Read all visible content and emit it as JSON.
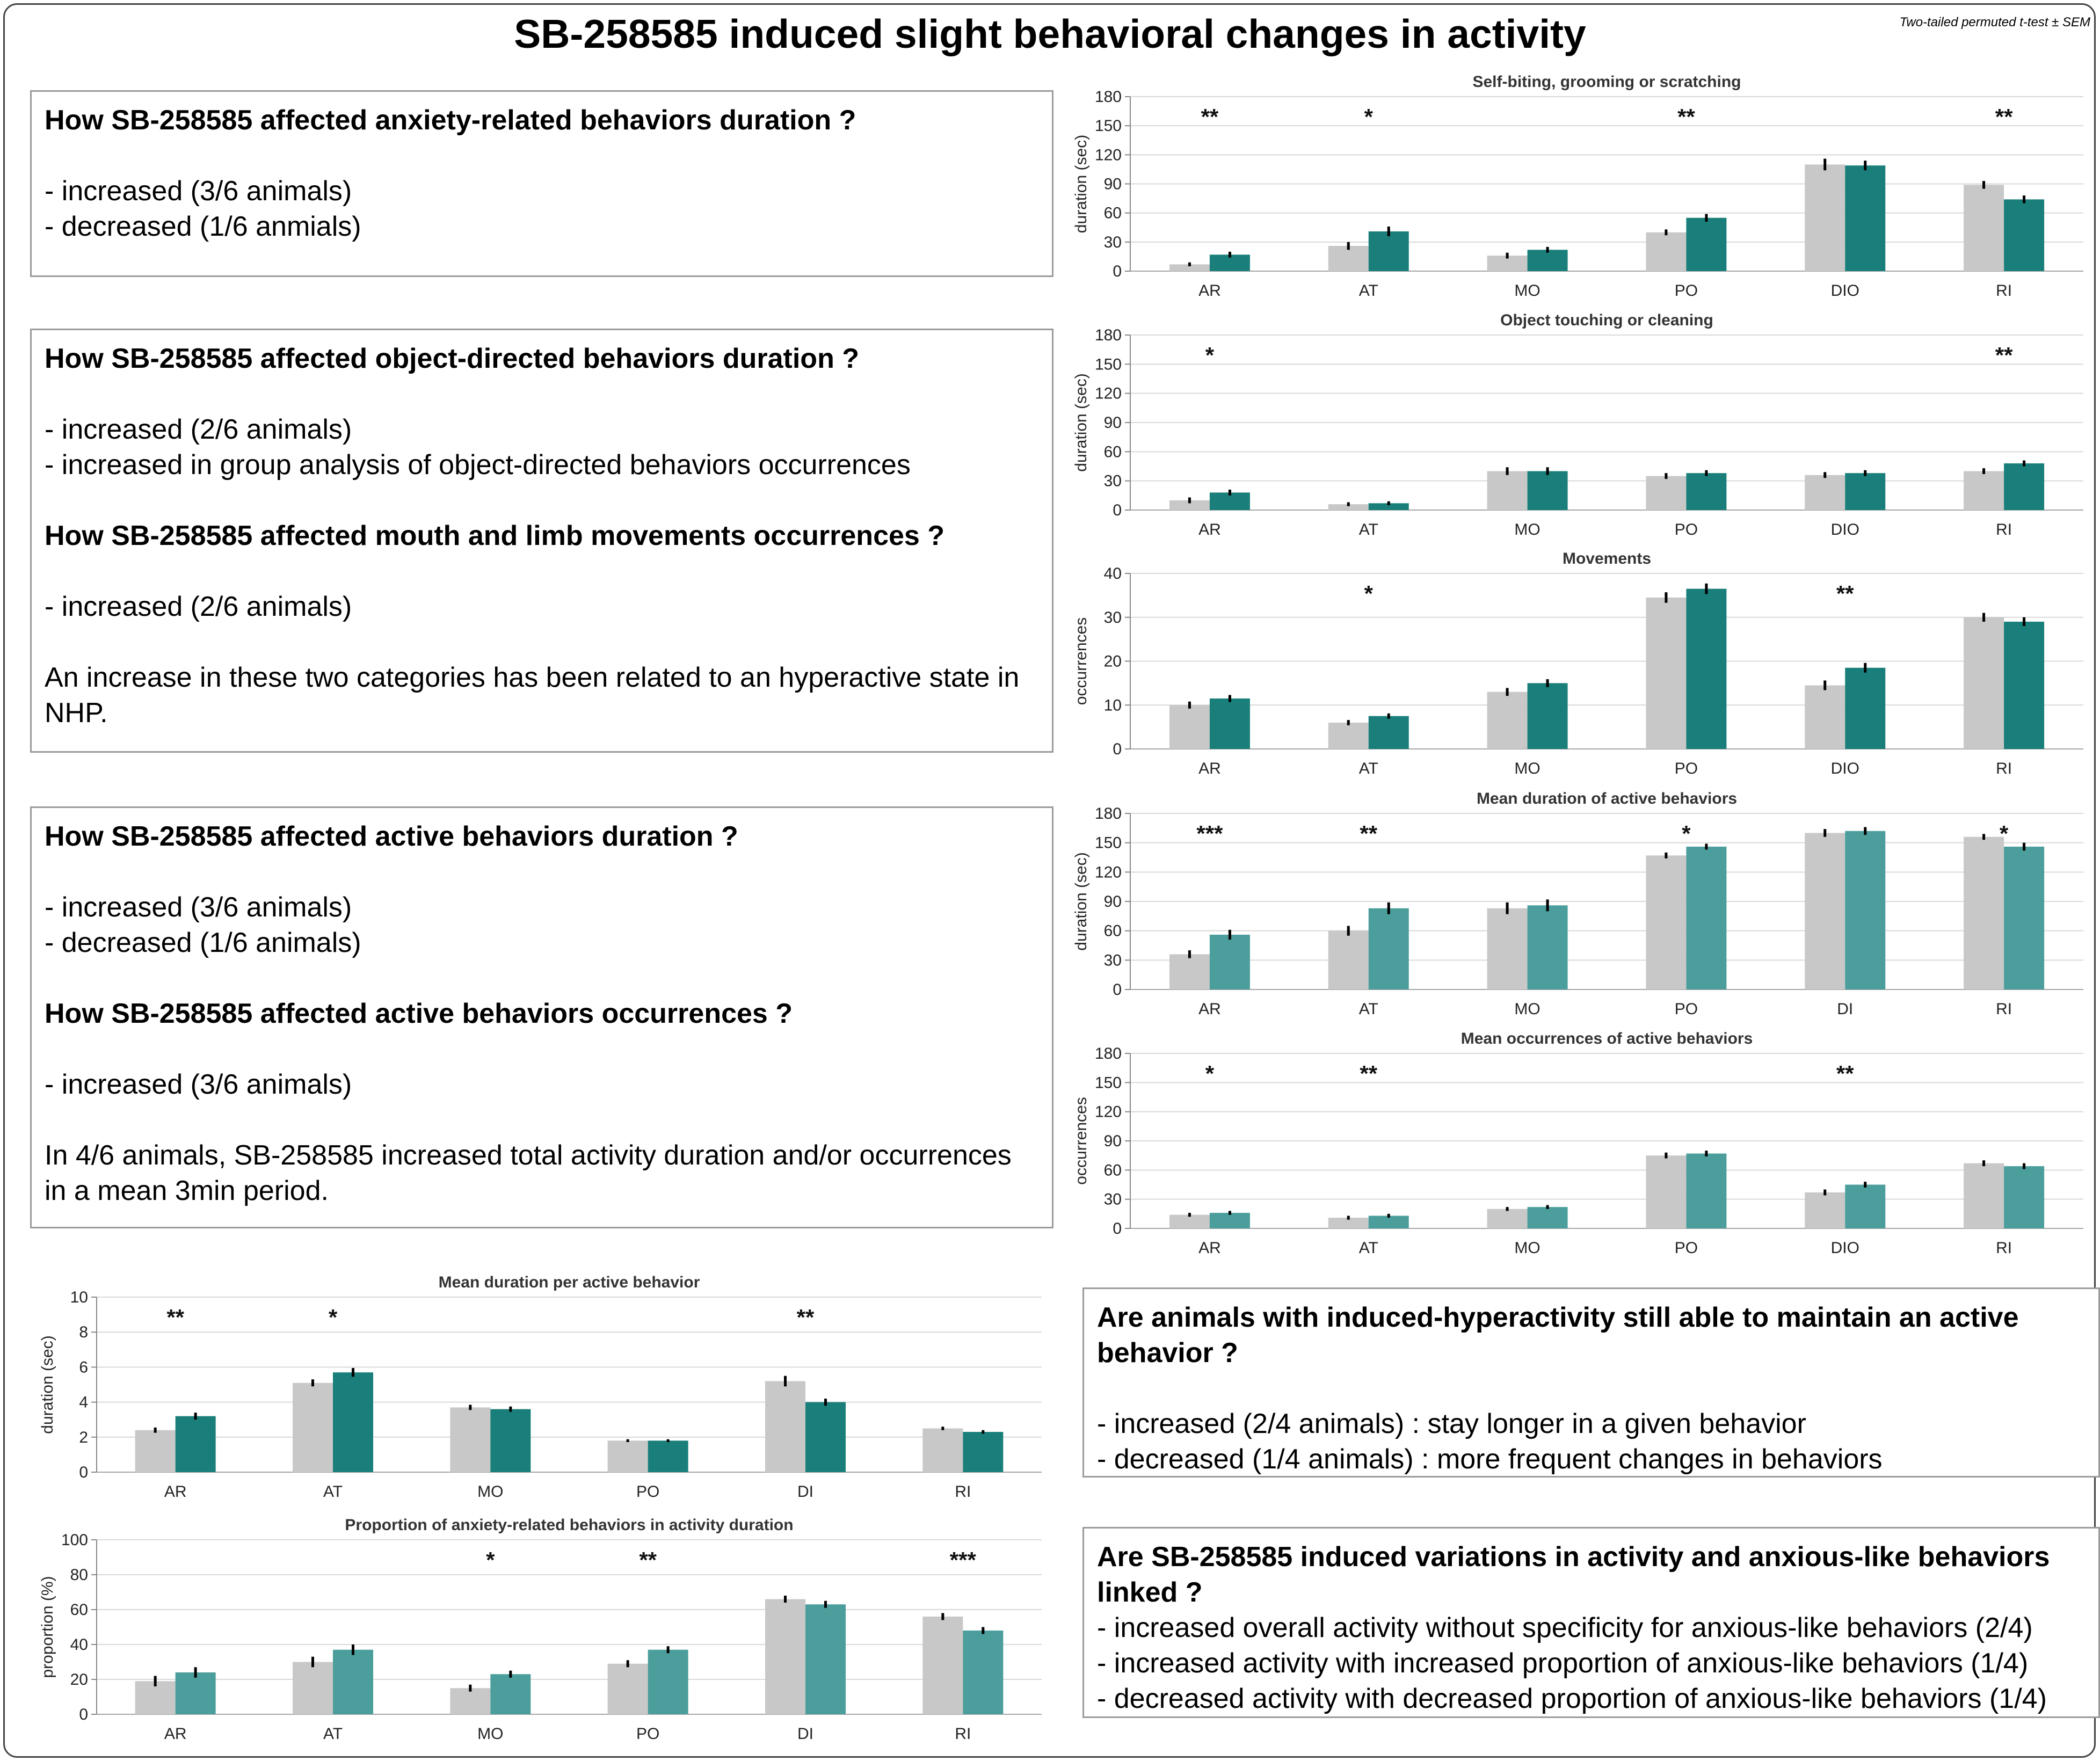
{
  "header": {
    "title": "SB-258585 induced slight behavioral changes in activity",
    "stat_note": "Two-tailed permuted t-test ± SEM"
  },
  "colors": {
    "baseline": "#c8c8c8",
    "drug_dark": "#1a7f7a",
    "drug_light": "#4b9e9b",
    "grid": "#d9d9d9",
    "error_bar": "#000000"
  },
  "boxes": {
    "anxiety": {
      "question": "How SB-258585 affected anxiety-related behaviors duration ?",
      "items": [
        "- increased (3/6 animals)",
        "- decreased (1/6 anmials)"
      ]
    },
    "object": {
      "question1": "How SB-258585 affected object-directed behaviors duration ?",
      "items1": [
        "- increased (2/6 animals)",
        "- increased in group analysis of object-directed behaviors occurrences"
      ],
      "question2": "How SB-258585 affected mouth and limb movements occurrences ?",
      "items2": [
        "- increased (2/6 animals)"
      ],
      "conclusion": "An increase in these two categories has been related to an hyperactive state in NHP."
    },
    "active": {
      "question1": "How SB-258585 affected active behaviors duration ?",
      "items1": [
        "- increased (3/6 animals)",
        "- decreased (1/6 animals)"
      ],
      "question2": "How SB-258585 affected active behaviors occurrences ?",
      "items2": [
        "- increased (3/6 animals)"
      ],
      "conclusion": "In 4/6 animals, SB-258585 increased total activity duration and/or occurrences in a mean 3min period."
    },
    "hyper": {
      "question": "Are animals with induced-hyperactivity still able to maintain an active behavior ?",
      "items": [
        "- increased (2/4 animals) : stay longer in a given behavior",
        "- decreased (1/4 animals) : more frequent changes in behaviors"
      ]
    },
    "linked": {
      "question": "Are SB-258585 induced variations in activity and anxious-like behaviors linked ?",
      "items": [
        "- increased overall activity without specificity for anxious-like behaviors (2/4)",
        "- increased activity with increased proportion of anxious-like behaviors (1/4)",
        "- decreased activity with decreased proportion of anxious-like behaviors (1/4)"
      ]
    }
  },
  "chart_data": [
    {
      "type": "bar",
      "title": "Self-biting, grooming or scratching",
      "ylabel": "duration (sec)",
      "ylim": [
        0,
        180
      ],
      "yticks": [
        0,
        30,
        60,
        90,
        120,
        150,
        180
      ],
      "categories": [
        "AR",
        "AT",
        "MO",
        "PO",
        "DIO",
        "RI"
      ],
      "series": [
        {
          "values": [
            7,
            26,
            16,
            40,
            110,
            89
          ],
          "errors": [
            2,
            4,
            3,
            3,
            6,
            4
          ]
        },
        {
          "values": [
            17,
            41,
            22,
            55,
            109,
            74
          ],
          "errors": [
            3,
            5,
            3,
            4,
            5,
            4
          ]
        }
      ],
      "significance": [
        "**",
        "*",
        "",
        "**",
        "",
        "**"
      ],
      "grid": true,
      "drug_color": "dark"
    },
    {
      "type": "bar",
      "title": "Object touching or cleaning",
      "ylabel": "duration (sec)",
      "ylim": [
        0,
        180
      ],
      "yticks": [
        0,
        30,
        60,
        90,
        120,
        150,
        180
      ],
      "categories": [
        "AR",
        "AT",
        "MO",
        "PO",
        "DIO",
        "RI"
      ],
      "series": [
        {
          "values": [
            10,
            6,
            40,
            35,
            36,
            40
          ],
          "errors": [
            3,
            2,
            4,
            3,
            3,
            3
          ]
        },
        {
          "values": [
            18,
            7,
            40,
            38,
            38,
            48
          ],
          "errors": [
            3,
            2,
            4,
            3,
            3,
            3
          ]
        }
      ],
      "significance": [
        "*",
        "",
        "",
        "",
        "",
        "**"
      ],
      "grid": true,
      "drug_color": "dark"
    },
    {
      "type": "bar",
      "title": "Movements",
      "ylabel": "occurrences",
      "ylim": [
        0,
        40
      ],
      "yticks": [
        0,
        10,
        20,
        30,
        40
      ],
      "categories": [
        "AR",
        "AT",
        "MO",
        "PO",
        "DIO",
        "RI"
      ],
      "series": [
        {
          "values": [
            10,
            6,
            13,
            34.5,
            14.5,
            30
          ],
          "errors": [
            0.8,
            0.6,
            0.9,
            1.2,
            1.1,
            1.0
          ]
        },
        {
          "values": [
            11.5,
            7.5,
            15,
            36.5,
            18.5,
            29
          ],
          "errors": [
            0.8,
            0.6,
            0.9,
            1.2,
            1.1,
            1.0
          ]
        }
      ],
      "significance": [
        "",
        "*",
        "",
        "",
        "**",
        ""
      ],
      "grid": true,
      "drug_color": "dark"
    },
    {
      "type": "bar",
      "title": "Mean duration of active behaviors",
      "ylabel": "duration (sec)",
      "ylim": [
        0,
        180
      ],
      "yticks": [
        0,
        30,
        60,
        90,
        120,
        150,
        180
      ],
      "categories": [
        "AR",
        "AT",
        "MO",
        "PO",
        "DI",
        "RI"
      ],
      "series": [
        {
          "values": [
            36,
            60,
            83,
            137,
            160,
            156
          ],
          "errors": [
            4,
            5,
            6,
            3,
            4,
            3
          ]
        },
        {
          "values": [
            56,
            83,
            86,
            146,
            162,
            146
          ],
          "errors": [
            5,
            6,
            6,
            3,
            4,
            4
          ]
        }
      ],
      "significance": [
        "***",
        "**",
        "",
        "*",
        "",
        "*"
      ],
      "grid": true,
      "drug_color": "light"
    },
    {
      "type": "bar",
      "title": "Mean occurrences of active behaviors",
      "ylabel": "occurrences",
      "ylim": [
        0,
        180
      ],
      "yticks": [
        0,
        30,
        60,
        90,
        120,
        150,
        180
      ],
      "categories": [
        "AR",
        "AT",
        "MO",
        "PO",
        "DIO",
        "RI"
      ],
      "series": [
        {
          "values": [
            14,
            11,
            20,
            75,
            37,
            67
          ],
          "errors": [
            2,
            2,
            2,
            3,
            3,
            3
          ]
        },
        {
          "values": [
            16,
            13,
            22,
            77,
            45,
            64
          ],
          "errors": [
            2,
            2,
            2,
            3,
            3,
            3
          ]
        }
      ],
      "significance": [
        "*",
        "**",
        "",
        "",
        "**",
        ""
      ],
      "grid": true,
      "drug_color": "light"
    },
    {
      "type": "bar",
      "title": "Mean duration per active behavior",
      "ylabel": "duration (sec)",
      "ylim": [
        0,
        10
      ],
      "yticks": [
        0,
        2,
        4,
        6,
        8,
        10
      ],
      "categories": [
        "AR",
        "AT",
        "MO",
        "PO",
        "DI",
        "RI"
      ],
      "series": [
        {
          "values": [
            2.4,
            5.1,
            3.7,
            1.8,
            5.2,
            2.5
          ],
          "errors": [
            0.15,
            0.2,
            0.15,
            0.08,
            0.3,
            0.1
          ]
        },
        {
          "values": [
            3.2,
            5.7,
            3.6,
            1.8,
            4.0,
            2.3
          ],
          "errors": [
            0.2,
            0.25,
            0.15,
            0.08,
            0.2,
            0.1
          ]
        }
      ],
      "significance": [
        "**",
        "*",
        "",
        "",
        "**",
        ""
      ],
      "grid": true,
      "drug_color": "dark"
    },
    {
      "type": "bar",
      "title": "Proportion of anxiety-related behaviors in activity duration",
      "ylabel": "proportion (%)",
      "ylim": [
        0,
        100
      ],
      "yticks": [
        0,
        20,
        40,
        60,
        80,
        100
      ],
      "categories": [
        "AR",
        "AT",
        "MO",
        "PO",
        "DI",
        "RI"
      ],
      "series": [
        {
          "values": [
            19,
            30,
            15,
            29,
            66,
            56
          ],
          "errors": [
            3,
            3,
            2,
            2,
            2,
            2
          ]
        },
        {
          "values": [
            24,
            37,
            23,
            37,
            63,
            48
          ],
          "errors": [
            3,
            3,
            2,
            2,
            2,
            2
          ]
        }
      ],
      "significance": [
        "",
        "",
        "*",
        "**",
        "",
        "***"
      ],
      "grid": true,
      "drug_color": "light"
    }
  ]
}
